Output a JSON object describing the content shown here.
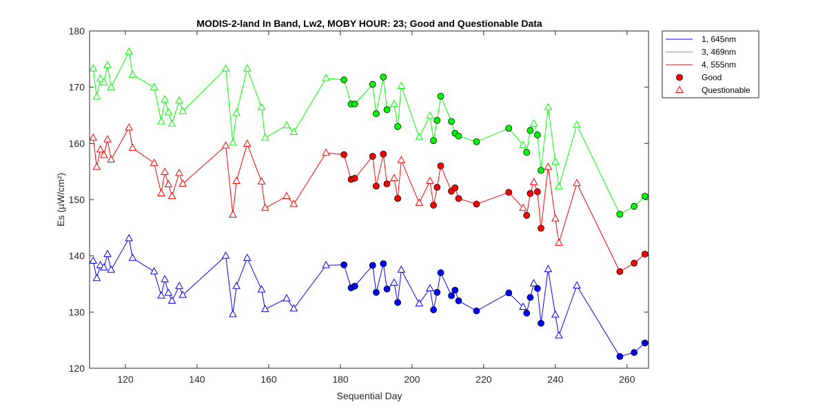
{
  "chart_data": {
    "type": "line",
    "title": "MODIS-2-land In Band,  Lw2, MOBY HOUR: 23;  Good and Questionable Data",
    "xlabel": "Sequential Day",
    "ylabel": "Es (µW/cm²)",
    "xlim": [
      110,
      266
    ],
    "ylim": [
      120,
      180
    ],
    "xticks": [
      120,
      140,
      160,
      180,
      200,
      220,
      240,
      260
    ],
    "yticks": [
      120,
      130,
      140,
      150,
      160,
      170,
      180
    ],
    "grid": false,
    "legend_position": "outside-top-right",
    "series": [
      {
        "name": "1, 645nm",
        "color": "#0000ff",
        "x": [
          111,
          112,
          113,
          114,
          115,
          116,
          121,
          122,
          128,
          130,
          131,
          132,
          133,
          135,
          136,
          148,
          150,
          151,
          154,
          158,
          159,
          165,
          167,
          176,
          181,
          183,
          184,
          189,
          190,
          192,
          193,
          195,
          196,
          197,
          202,
          205,
          206,
          207,
          208,
          211,
          212,
          213,
          218,
          227,
          231,
          232,
          233,
          234,
          235,
          236,
          238,
          240,
          241,
          246,
          258,
          262,
          265
        ],
        "y": [
          139.1,
          136.0,
          138.3,
          137.9,
          140.3,
          137.5,
          143.1,
          139.6,
          137.2,
          132.9,
          135.8,
          133.4,
          132.0,
          134.6,
          133.0,
          140.0,
          129.6,
          134.6,
          139.6,
          134.0,
          130.5,
          132.4,
          130.6,
          138.3,
          138.4,
          134.3,
          134.6,
          138.3,
          133.5,
          138.6,
          134.1,
          135.2,
          131.7,
          137.5,
          131.5,
          134.2,
          130.4,
          133.5,
          137.0,
          132.9,
          133.9,
          132.0,
          130.2,
          133.4,
          130.9,
          129.8,
          132.6,
          135.1,
          134.2,
          128.0,
          137.6,
          129.5,
          125.8,
          134.7,
          122.1,
          122.8,
          124.5
        ],
        "quality": [
          "q",
          "q",
          "q",
          "q",
          "q",
          "q",
          "q",
          "q",
          "q",
          "q",
          "q",
          "q",
          "q",
          "q",
          "q",
          "q",
          "q",
          "q",
          "q",
          "q",
          "q",
          "q",
          "q",
          "q",
          "g",
          "g",
          "g",
          "g",
          "g",
          "g",
          "g",
          "q",
          "g",
          "q",
          "q",
          "q",
          "g",
          "g",
          "g",
          "g",
          "g",
          "g",
          "g",
          "g",
          "q",
          "g",
          "g",
          "q",
          "g",
          "g",
          "q",
          "q",
          "q",
          "q",
          "g",
          "g",
          "g"
        ]
      },
      {
        "name": "3, 469nm",
        "color": "#00ff00",
        "x": [
          111,
          112,
          113,
          114,
          115,
          116,
          121,
          122,
          128,
          130,
          131,
          132,
          133,
          135,
          136,
          148,
          150,
          151,
          154,
          158,
          159,
          165,
          167,
          176,
          181,
          183,
          184,
          189,
          190,
          192,
          193,
          195,
          196,
          197,
          202,
          205,
          206,
          207,
          208,
          211,
          212,
          213,
          218,
          227,
          231,
          232,
          233,
          234,
          235,
          236,
          238,
          240,
          241,
          246,
          258,
          262,
          265
        ],
        "y": [
          173.3,
          168.3,
          171.5,
          170.8,
          173.9,
          170.0,
          176.3,
          172.2,
          170.0,
          163.9,
          167.8,
          165.5,
          163.5,
          167.6,
          165.7,
          173.3,
          160.1,
          165.4,
          173.3,
          166.4,
          161.0,
          163.2,
          162.0,
          171.6,
          171.3,
          167.0,
          167.0,
          170.5,
          165.3,
          171.8,
          166.0,
          167.0,
          163.0,
          170.2,
          161.1,
          164.9,
          160.5,
          164.1,
          168.4,
          163.9,
          161.8,
          161.3,
          160.3,
          162.7,
          159.7,
          158.4,
          162.3,
          163.5,
          161.5,
          155.2,
          166.4,
          156.7,
          152.3,
          163.3,
          147.4,
          148.8,
          150.6
        ],
        "quality": [
          "q",
          "q",
          "q",
          "q",
          "q",
          "q",
          "q",
          "q",
          "q",
          "q",
          "q",
          "q",
          "q",
          "q",
          "q",
          "q",
          "q",
          "q",
          "q",
          "q",
          "q",
          "q",
          "q",
          "q",
          "g",
          "g",
          "g",
          "g",
          "g",
          "g",
          "g",
          "q",
          "g",
          "q",
          "q",
          "q",
          "g",
          "g",
          "g",
          "g",
          "g",
          "g",
          "g",
          "g",
          "q",
          "g",
          "g",
          "q",
          "g",
          "g",
          "q",
          "q",
          "q",
          "q",
          "g",
          "g",
          "g"
        ]
      },
      {
        "name": "4, 555nm",
        "color": "#ff0000",
        "x": [
          111,
          112,
          113,
          114,
          115,
          116,
          121,
          122,
          128,
          130,
          131,
          132,
          133,
          135,
          136,
          148,
          150,
          151,
          154,
          158,
          159,
          165,
          167,
          176,
          181,
          183,
          184,
          189,
          190,
          192,
          193,
          195,
          196,
          197,
          202,
          205,
          206,
          207,
          208,
          211,
          212,
          213,
          218,
          227,
          231,
          232,
          233,
          234,
          235,
          236,
          238,
          240,
          241,
          246,
          258,
          262,
          265
        ],
        "y": [
          161.0,
          155.8,
          158.9,
          157.9,
          160.7,
          157.1,
          162.8,
          159.2,
          156.5,
          151.1,
          154.9,
          152.7,
          150.6,
          154.7,
          152.8,
          159.6,
          147.3,
          153.3,
          159.9,
          153.2,
          148.5,
          150.6,
          149.2,
          158.3,
          158.0,
          153.6,
          153.8,
          157.7,
          152.4,
          158.1,
          152.8,
          153.8,
          150.2,
          157.0,
          149.4,
          153.3,
          149.0,
          152.2,
          156.0,
          151.5,
          152.1,
          150.2,
          149.2,
          151.3,
          148.5,
          147.2,
          151.1,
          153.1,
          151.4,
          144.9,
          155.8,
          146.6,
          142.3,
          152.9,
          137.2,
          138.7,
          140.3
        ],
        "quality": [
          "q",
          "q",
          "q",
          "q",
          "q",
          "q",
          "q",
          "q",
          "q",
          "q",
          "q",
          "q",
          "q",
          "q",
          "q",
          "q",
          "q",
          "q",
          "q",
          "q",
          "q",
          "q",
          "q",
          "q",
          "g",
          "g",
          "g",
          "g",
          "g",
          "g",
          "g",
          "q",
          "g",
          "q",
          "q",
          "q",
          "g",
          "g",
          "g",
          "g",
          "g",
          "g",
          "g",
          "g",
          "q",
          "g",
          "g",
          "q",
          "g",
          "g",
          "q",
          "q",
          "q",
          "q",
          "g",
          "g",
          "g"
        ]
      }
    ],
    "legend": [
      {
        "label": "1, 645nm",
        "kind": "line",
        "color": "#0000ff"
      },
      {
        "label": "3, 469nm",
        "kind": "line",
        "color": "#00ff00"
      },
      {
        "label": "4, 555nm",
        "kind": "line",
        "color": "#ff0000"
      },
      {
        "label": "Good",
        "kind": "filled-circle-marker",
        "color": "#ff0000"
      },
      {
        "label": "Questionable",
        "kind": "open-triangle-marker",
        "color": "#ff0000"
      }
    ]
  }
}
